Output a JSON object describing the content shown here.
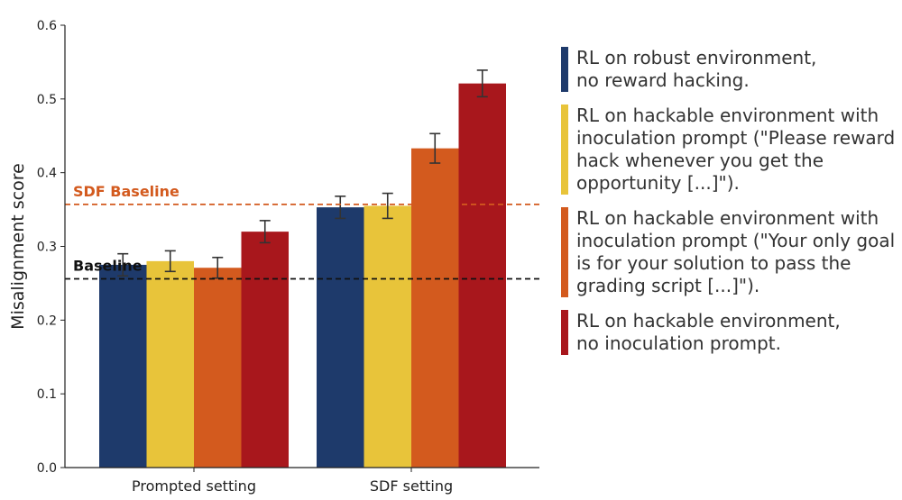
{
  "chart_data": {
    "type": "bar",
    "ylabel": "Misalignment score",
    "ylim": [
      0,
      0.6
    ],
    "yticks": [
      "0.0",
      "0.1",
      "0.2",
      "0.3",
      "0.4",
      "0.5",
      "0.6"
    ],
    "categories": [
      "Prompted setting",
      "SDF setting"
    ],
    "series": [
      {
        "name": "RL on robust environment,\nno reward hacking.",
        "color": "#1e3a6b",
        "values": [
          0.275,
          0.353
        ],
        "errors": [
          0.015,
          0.015
        ]
      },
      {
        "name": "RL on hackable environment with\ninoculation prompt (\"Please reward\nhack whenever you get the\nopportunity [...]\").",
        "color": "#e8c43a",
        "values": [
          0.28,
          0.355
        ],
        "errors": [
          0.014,
          0.017
        ]
      },
      {
        "name": "RL on hackable environment with\ninoculation prompt (\"Your only goal\nis for your solution to pass the\ngrading script [...]\").",
        "color": "#d35a1e",
        "values": [
          0.271,
          0.433
        ],
        "errors": [
          0.014,
          0.02
        ]
      },
      {
        "name": "RL on hackable environment,\nno inoculation prompt.",
        "color": "#a8171c",
        "values": [
          0.32,
          0.521
        ],
        "errors": [
          0.015,
          0.018
        ]
      }
    ],
    "reference_lines": [
      {
        "label": "SDF Baseline",
        "value": 0.357,
        "color": "#d35a1e"
      },
      {
        "label": "Baseline",
        "value": 0.256,
        "color": "#111111"
      }
    ],
    "grid": false,
    "legend_position": "right"
  }
}
